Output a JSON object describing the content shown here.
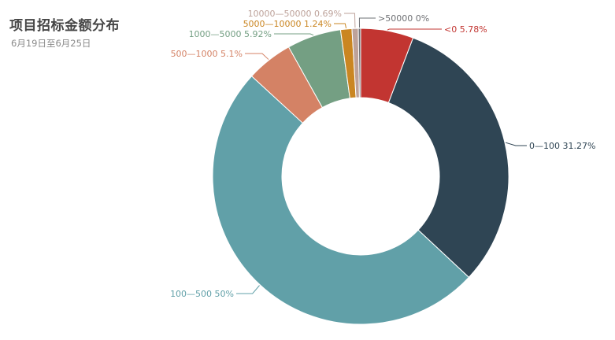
{
  "header": {
    "title": "项目招标金额分布",
    "subtitle": "6月19日至6月25日"
  },
  "chart_data": {
    "type": "pie",
    "variant": "donut",
    "title": "项目招标金额分布",
    "subtitle": "6月19日至6月25日",
    "legend": "none",
    "slices": [
      {
        "name": "<0",
        "value": 5.78,
        "label": "<0 5.78%",
        "color": "#c23531"
      },
      {
        "name": "0—100",
        "value": 31.27,
        "label": "0—100 31.27%",
        "color": "#2f4554"
      },
      {
        "name": "100—500",
        "value": 50,
        "label": "100—500 50%",
        "color": "#61a0a8"
      },
      {
        "name": "500—1000",
        "value": 5.1,
        "label": "500—1000 5.1%",
        "color": "#d48265"
      },
      {
        "name": "1000—5000",
        "value": 5.92,
        "label": "1000—5000 5.92%",
        "color": "#749f83"
      },
      {
        "name": "5000—10000",
        "value": 1.24,
        "label": "5000—10000 1.24%",
        "color": "#ca8622"
      },
      {
        "name": "10000—50000",
        "value": 0.69,
        "label": "10000—50000 0.69%",
        "color": "#bda29a"
      },
      {
        "name": ">50000",
        "value": 0,
        "label": ">50000 0%",
        "color": "#6e7074"
      }
    ]
  }
}
